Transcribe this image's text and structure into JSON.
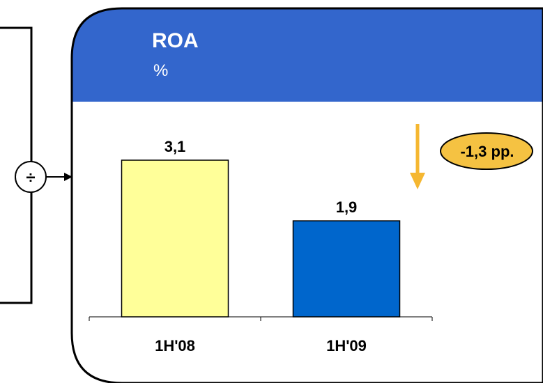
{
  "panel": {
    "title": "ROA",
    "unit": "%",
    "header_color": "#3366cc"
  },
  "operator_symbol": "÷",
  "change_badge": {
    "text": "-1,3 pp.",
    "color": "#f5c242",
    "arrow_color": "#f5b731",
    "direction": "down"
  },
  "chart_data": {
    "type": "bar",
    "title": "ROA",
    "ylabel": "%",
    "categories": [
      "1H'08",
      "1H'09"
    ],
    "values": [
      3.1,
      1.9
    ],
    "value_labels": [
      "3,1",
      "1,9"
    ],
    "bar_colors": [
      "#ffff99",
      "#0066cc"
    ],
    "ylim": [
      0,
      3.1
    ],
    "grid": false
  }
}
